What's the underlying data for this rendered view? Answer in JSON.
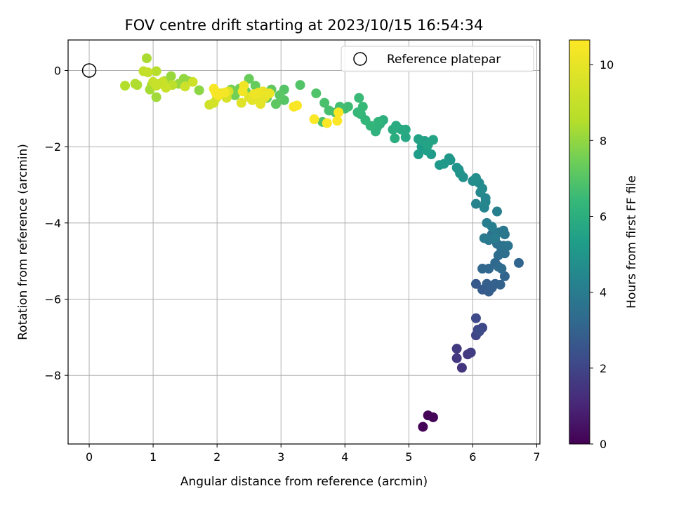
{
  "chart_data": {
    "type": "scatter",
    "title": "FOV centre drift starting at 2023/10/15 16:54:34",
    "xlabel": "Angular distance from reference (arcmin)",
    "ylabel": "Rotation from reference (arcmin)",
    "xlim": [
      -0.33,
      7.05
    ],
    "ylim": [
      -9.8,
      0.8
    ],
    "xticks": [
      0,
      1,
      2,
      3,
      4,
      5,
      6,
      7
    ],
    "yticks": [
      0,
      -2,
      -4,
      -6,
      -8
    ],
    "grid": true,
    "legend": {
      "placement": "top-right",
      "entries": [
        "Reference platepar"
      ]
    },
    "reference_point": {
      "x": 0,
      "y": 0
    },
    "colorbar": {
      "label": "Hours from first FF file",
      "range": [
        0,
        10.65
      ],
      "ticks": [
        0,
        2,
        4,
        6,
        8,
        10
      ],
      "colormap": "viridis"
    },
    "points": [
      {
        "x": 5.22,
        "y": -9.35,
        "h": 0.05
      },
      {
        "x": 5.3,
        "y": -9.05,
        "h": 0.1
      },
      {
        "x": 5.38,
        "y": -9.1,
        "h": 0.15
      },
      {
        "x": 5.83,
        "y": -7.8,
        "h": 1.5
      },
      {
        "x": 5.75,
        "y": -7.55,
        "h": 1.55
      },
      {
        "x": 5.75,
        "y": -7.3,
        "h": 1.6
      },
      {
        "x": 5.92,
        "y": -7.45,
        "h": 1.65
      },
      {
        "x": 5.97,
        "y": -7.4,
        "h": 1.7
      },
      {
        "x": 6.05,
        "y": -6.95,
        "h": 2.0
      },
      {
        "x": 6.08,
        "y": -6.8,
        "h": 2.05
      },
      {
        "x": 6.15,
        "y": -6.75,
        "h": 2.1
      },
      {
        "x": 6.05,
        "y": -6.5,
        "h": 2.15
      },
      {
        "x": 6.1,
        "y": -6.85,
        "h": 2.2
      },
      {
        "x": 6.05,
        "y": -5.6,
        "h": 2.7
      },
      {
        "x": 6.15,
        "y": -5.75,
        "h": 2.75
      },
      {
        "x": 6.25,
        "y": -5.8,
        "h": 2.8
      },
      {
        "x": 6.22,
        "y": -5.6,
        "h": 2.85
      },
      {
        "x": 6.3,
        "y": -5.7,
        "h": 2.9
      },
      {
        "x": 6.35,
        "y": -5.6,
        "h": 2.95
      },
      {
        "x": 6.43,
        "y": -5.62,
        "h": 3.0
      },
      {
        "x": 6.5,
        "y": -5.4,
        "h": 3.05
      },
      {
        "x": 6.72,
        "y": -5.05,
        "h": 3.1
      },
      {
        "x": 6.15,
        "y": -5.2,
        "h": 3.15
      },
      {
        "x": 6.25,
        "y": -5.2,
        "h": 3.2
      },
      {
        "x": 6.35,
        "y": -5.05,
        "h": 3.25
      },
      {
        "x": 6.4,
        "y": -5.15,
        "h": 3.3
      },
      {
        "x": 6.45,
        "y": -5.2,
        "h": 3.35
      },
      {
        "x": 6.4,
        "y": -4.85,
        "h": 3.4
      },
      {
        "x": 6.45,
        "y": -4.7,
        "h": 3.45
      },
      {
        "x": 6.5,
        "y": -4.8,
        "h": 3.5
      },
      {
        "x": 6.38,
        "y": -4.55,
        "h": 3.55
      },
      {
        "x": 6.3,
        "y": -4.3,
        "h": 3.6
      },
      {
        "x": 6.48,
        "y": -4.6,
        "h": 3.65
      },
      {
        "x": 6.55,
        "y": -4.6,
        "h": 3.7
      },
      {
        "x": 6.5,
        "y": -4.3,
        "h": 3.75
      },
      {
        "x": 6.48,
        "y": -4.2,
        "h": 3.8
      },
      {
        "x": 6.4,
        "y": -4.25,
        "h": 3.85
      },
      {
        "x": 6.25,
        "y": -4.45,
        "h": 3.9
      },
      {
        "x": 6.18,
        "y": -4.4,
        "h": 3.95
      },
      {
        "x": 6.35,
        "y": -4.4,
        "h": 4.0
      },
      {
        "x": 6.22,
        "y": -4.0,
        "h": 4.05
      },
      {
        "x": 6.3,
        "y": -4.1,
        "h": 4.1
      },
      {
        "x": 6.38,
        "y": -3.7,
        "h": 4.15
      },
      {
        "x": 6.05,
        "y": -3.5,
        "h": 4.3
      },
      {
        "x": 6.18,
        "y": -3.6,
        "h": 4.35
      },
      {
        "x": 6.2,
        "y": -3.45,
        "h": 4.4
      },
      {
        "x": 6.2,
        "y": -3.35,
        "h": 4.45
      },
      {
        "x": 6.12,
        "y": -3.2,
        "h": 4.5
      },
      {
        "x": 6.15,
        "y": -3.1,
        "h": 4.55
      },
      {
        "x": 6.1,
        "y": -2.95,
        "h": 4.6
      },
      {
        "x": 6.0,
        "y": -2.9,
        "h": 4.65
      },
      {
        "x": 6.05,
        "y": -2.82,
        "h": 4.7
      },
      {
        "x": 5.85,
        "y": -2.8,
        "h": 4.8
      },
      {
        "x": 5.78,
        "y": -2.6,
        "h": 4.85
      },
      {
        "x": 5.8,
        "y": -2.7,
        "h": 4.9
      },
      {
        "x": 5.75,
        "y": -2.55,
        "h": 4.95
      },
      {
        "x": 5.65,
        "y": -2.35,
        "h": 5.0
      },
      {
        "x": 5.63,
        "y": -2.3,
        "h": 5.05
      },
      {
        "x": 5.55,
        "y": -2.45,
        "h": 5.1
      },
      {
        "x": 5.48,
        "y": -2.48,
        "h": 5.15
      },
      {
        "x": 5.35,
        "y": -2.2,
        "h": 5.2
      },
      {
        "x": 5.2,
        "y": -2.0,
        "h": 5.25
      },
      {
        "x": 5.15,
        "y": -2.2,
        "h": 5.3
      },
      {
        "x": 5.28,
        "y": -2.1,
        "h": 5.35
      },
      {
        "x": 5.25,
        "y": -1.85,
        "h": 5.4
      },
      {
        "x": 5.2,
        "y": -1.85,
        "h": 5.45
      },
      {
        "x": 5.15,
        "y": -1.8,
        "h": 5.5
      },
      {
        "x": 5.38,
        "y": -1.82,
        "h": 5.55
      },
      {
        "x": 5.3,
        "y": -1.95,
        "h": 5.6
      },
      {
        "x": 4.95,
        "y": -1.75,
        "h": 5.7
      },
      {
        "x": 4.95,
        "y": -1.55,
        "h": 5.75
      },
      {
        "x": 4.88,
        "y": -1.55,
        "h": 5.8
      },
      {
        "x": 4.8,
        "y": -1.45,
        "h": 5.85
      },
      {
        "x": 4.75,
        "y": -1.55,
        "h": 5.9
      },
      {
        "x": 4.78,
        "y": -1.78,
        "h": 5.95
      },
      {
        "x": 4.6,
        "y": -1.3,
        "h": 6.0
      },
      {
        "x": 4.55,
        "y": -1.4,
        "h": 6.05
      },
      {
        "x": 4.5,
        "y": -1.5,
        "h": 6.1
      },
      {
        "x": 4.48,
        "y": -1.6,
        "h": 6.15
      },
      {
        "x": 4.52,
        "y": -1.35,
        "h": 6.2
      },
      {
        "x": 4.4,
        "y": -1.45,
        "h": 6.25
      },
      {
        "x": 4.32,
        "y": -1.3,
        "h": 6.3
      },
      {
        "x": 4.25,
        "y": -1.15,
        "h": 6.35
      },
      {
        "x": 4.2,
        "y": -1.1,
        "h": 6.4
      },
      {
        "x": 4.28,
        "y": -0.95,
        "h": 6.45
      },
      {
        "x": 4.22,
        "y": -0.72,
        "h": 6.5
      },
      {
        "x": 4.05,
        "y": -0.95,
        "h": 6.55
      },
      {
        "x": 4.0,
        "y": -1.0,
        "h": 6.6
      },
      {
        "x": 3.92,
        "y": -0.95,
        "h": 6.65
      },
      {
        "x": 3.85,
        "y": -1.1,
        "h": 6.7
      },
      {
        "x": 3.75,
        "y": -1.05,
        "h": 6.75
      },
      {
        "x": 3.68,
        "y": -0.85,
        "h": 6.8
      },
      {
        "x": 3.65,
        "y": -1.35,
        "h": 6.85
      },
      {
        "x": 3.55,
        "y": -0.6,
        "h": 6.9
      },
      {
        "x": 3.3,
        "y": -0.38,
        "h": 6.95
      },
      {
        "x": 3.05,
        "y": -0.5,
        "h": 7.0
      },
      {
        "x": 3.05,
        "y": -0.78,
        "h": 7.05
      },
      {
        "x": 2.98,
        "y": -0.65,
        "h": 7.1
      },
      {
        "x": 2.92,
        "y": -0.88,
        "h": 7.15
      },
      {
        "x": 2.85,
        "y": -0.5,
        "h": 7.2
      },
      {
        "x": 2.78,
        "y": -0.72,
        "h": 7.25
      },
      {
        "x": 2.6,
        "y": -0.4,
        "h": 7.3
      },
      {
        "x": 2.5,
        "y": -0.22,
        "h": 7.35
      },
      {
        "x": 2.45,
        "y": -0.55,
        "h": 7.4
      },
      {
        "x": 2.35,
        "y": -0.48,
        "h": 7.45
      },
      {
        "x": 2.28,
        "y": -0.65,
        "h": 7.5
      },
      {
        "x": 2.22,
        "y": -0.5,
        "h": 7.55
      },
      {
        "x": 1.72,
        "y": -0.52,
        "h": 7.9
      },
      {
        "x": 1.55,
        "y": -0.28,
        "h": 7.95
      },
      {
        "x": 1.48,
        "y": -0.22,
        "h": 8.0
      },
      {
        "x": 1.4,
        "y": -0.35,
        "h": 8.05
      },
      {
        "x": 1.28,
        "y": -0.15,
        "h": 8.1
      },
      {
        "x": 1.18,
        "y": -0.28,
        "h": 8.15
      },
      {
        "x": 1.05,
        "y": -0.7,
        "h": 8.2
      },
      {
        "x": 0.98,
        "y": -0.38,
        "h": 8.25
      },
      {
        "x": 0.95,
        "y": -0.5,
        "h": 8.3
      },
      {
        "x": 0.9,
        "y": 0.32,
        "h": 8.35
      },
      {
        "x": 0.75,
        "y": -0.38,
        "h": 8.4
      },
      {
        "x": 0.72,
        "y": -0.35,
        "h": 8.45
      },
      {
        "x": 0.56,
        "y": -0.4,
        "h": 8.5
      },
      {
        "x": 1.05,
        "y": -0.02,
        "h": 8.55
      },
      {
        "x": 1.1,
        "y": -0.35,
        "h": 8.6
      },
      {
        "x": 1.2,
        "y": -0.45,
        "h": 8.65
      },
      {
        "x": 1.3,
        "y": -0.38,
        "h": 8.7
      },
      {
        "x": 0.85,
        "y": -0.02,
        "h": 8.9
      },
      {
        "x": 0.92,
        "y": -0.05,
        "h": 8.95
      },
      {
        "x": 1.0,
        "y": -0.3,
        "h": 9.0
      },
      {
        "x": 1.05,
        "y": -0.4,
        "h": 9.05
      },
      {
        "x": 1.15,
        "y": -0.3,
        "h": 9.1
      },
      {
        "x": 1.2,
        "y": -0.45,
        "h": 9.15
      },
      {
        "x": 1.5,
        "y": -0.42,
        "h": 9.2
      },
      {
        "x": 1.62,
        "y": -0.3,
        "h": 9.25
      },
      {
        "x": 1.88,
        "y": -0.9,
        "h": 9.3
      },
      {
        "x": 1.95,
        "y": -0.85,
        "h": 9.35
      },
      {
        "x": 2.0,
        "y": -0.7,
        "h": 9.4
      },
      {
        "x": 2.05,
        "y": -0.6,
        "h": 9.45
      },
      {
        "x": 2.15,
        "y": -0.72,
        "h": 9.5
      },
      {
        "x": 2.18,
        "y": -0.55,
        "h": 9.55
      },
      {
        "x": 2.38,
        "y": -0.85,
        "h": 9.75
      },
      {
        "x": 2.5,
        "y": -0.7,
        "h": 9.8
      },
      {
        "x": 2.55,
        "y": -0.78,
        "h": 9.85
      },
      {
        "x": 2.62,
        "y": -0.75,
        "h": 9.9
      },
      {
        "x": 2.68,
        "y": -0.88,
        "h": 9.95
      },
      {
        "x": 2.75,
        "y": -0.7,
        "h": 10.0
      },
      {
        "x": 2.72,
        "y": -0.55,
        "h": 10.05
      },
      {
        "x": 2.82,
        "y": -0.6,
        "h": 10.1
      },
      {
        "x": 2.65,
        "y": -0.58,
        "h": 10.15
      },
      {
        "x": 2.58,
        "y": -0.62,
        "h": 10.2
      },
      {
        "x": 2.42,
        "y": -0.4,
        "h": 10.25
      },
      {
        "x": 2.4,
        "y": -0.55,
        "h": 10.3
      },
      {
        "x": 2.12,
        "y": -0.58,
        "h": 10.35
      },
      {
        "x": 2.02,
        "y": -0.65,
        "h": 10.4
      },
      {
        "x": 1.95,
        "y": -0.48,
        "h": 10.45
      },
      {
        "x": 1.98,
        "y": -0.58,
        "h": 10.48
      },
      {
        "x": 3.2,
        "y": -0.95,
        "h": 10.5
      },
      {
        "x": 3.25,
        "y": -0.92,
        "h": 10.52
      },
      {
        "x": 3.52,
        "y": -1.28,
        "h": 10.55
      },
      {
        "x": 3.72,
        "y": -1.38,
        "h": 10.58
      },
      {
        "x": 3.88,
        "y": -1.32,
        "h": 10.6
      },
      {
        "x": 3.9,
        "y": -1.1,
        "h": 10.62
      }
    ]
  }
}
